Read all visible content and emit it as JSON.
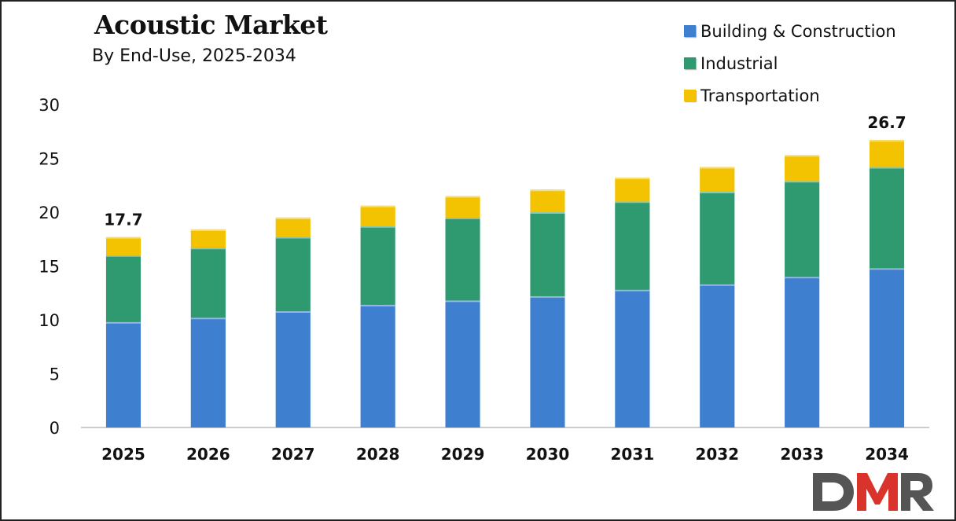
{
  "chart_data": {
    "type": "bar",
    "stacked": true,
    "title": "Acoustic Market",
    "subtitle": "By End-Use, 2025-2034",
    "categories": [
      "2025",
      "2026",
      "2027",
      "2028",
      "2029",
      "2030",
      "2031",
      "2032",
      "2033",
      "2034"
    ],
    "series": [
      {
        "name": "Building & Construction",
        "color": "#3f7fd0",
        "values": [
          9.8,
          10.2,
          10.8,
          11.4,
          11.8,
          12.2,
          12.8,
          13.3,
          14.0,
          14.8
        ]
      },
      {
        "name": "Industrial",
        "color": "#2f9970",
        "values": [
          6.2,
          6.5,
          6.9,
          7.3,
          7.7,
          7.8,
          8.2,
          8.6,
          8.9,
          9.4
        ]
      },
      {
        "name": "Transportation",
        "color": "#f3c200",
        "values": [
          1.7,
          1.7,
          1.8,
          1.9,
          2.0,
          2.1,
          2.2,
          2.3,
          2.4,
          2.5
        ]
      }
    ],
    "data_labels": [
      {
        "category": "2025",
        "text": "17.7"
      },
      {
        "category": "2034",
        "text": "26.7"
      }
    ],
    "ylim": [
      0,
      30
    ],
    "yticks": [
      "0",
      "5",
      "10",
      "15",
      "20",
      "25",
      "30"
    ],
    "xlabel": "",
    "ylabel": "",
    "grid": false,
    "legend_position": "top-right"
  },
  "logo": {
    "text": "DMR",
    "colors": [
      "#555555",
      "#d9332b",
      "#555555"
    ]
  }
}
